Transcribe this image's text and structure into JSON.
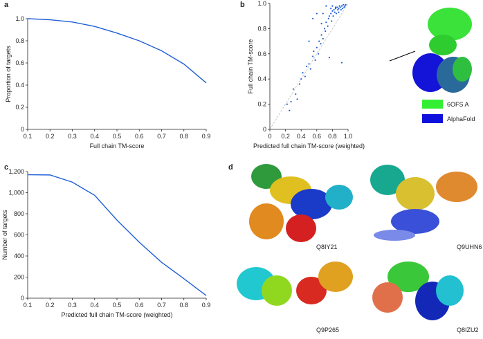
{
  "chart_data": [
    {
      "type": "line",
      "panel": "a",
      "xlabel": "Full chain TM-score",
      "ylabel": "Proportion of targets",
      "color": "#1f5fd6",
      "x": [
        0.1,
        0.2,
        0.3,
        0.4,
        0.5,
        0.6,
        0.7,
        0.8,
        0.9
      ],
      "values": [
        1.0,
        0.99,
        0.97,
        0.93,
        0.87,
        0.8,
        0.71,
        0.59,
        0.42
      ],
      "xlim": [
        0.1,
        0.9
      ],
      "xticks": [
        0.1,
        0.2,
        0.3,
        0.4,
        0.5,
        0.6,
        0.7,
        0.8,
        0.9
      ],
      "ylim": [
        0,
        1
      ],
      "yticks": [
        0,
        0.2,
        0.4,
        0.6,
        0.8,
        {
          "value": 1,
          "label": "1.0"
        }
      ]
    },
    {
      "type": "scatter",
      "panel": "b",
      "xlabel": "Predicted full chain TM-score (weighted)",
      "ylabel": "Full chain TM-score",
      "color": "#1f5fd6",
      "x": [
        0.22,
        0.25,
        0.27,
        0.3,
        0.33,
        0.35,
        0.38,
        0.4,
        0.42,
        0.45,
        0.47,
        0.5,
        0.52,
        0.55,
        0.56,
        0.58,
        0.6,
        0.62,
        0.63,
        0.65,
        0.66,
        0.68,
        0.7,
        0.71,
        0.72,
        0.74,
        0.75,
        0.76,
        0.78,
        0.79,
        0.8,
        0.81,
        0.82,
        0.83,
        0.84,
        0.85,
        0.86,
        0.87,
        0.88,
        0.89,
        0.9,
        0.91,
        0.92,
        0.93,
        0.94,
        0.95,
        0.96,
        0.97,
        0.6,
        0.72,
        0.76,
        0.55,
        0.5,
        0.8,
        0.68,
        0.92,
        0.88,
        0.84,
        0.78,
        0.66
      ],
      "values": [
        0.2,
        0.15,
        0.22,
        0.32,
        0.28,
        0.24,
        0.36,
        0.4,
        0.45,
        0.42,
        0.5,
        0.52,
        0.48,
        0.58,
        0.62,
        0.55,
        0.65,
        0.6,
        0.7,
        0.68,
        0.75,
        0.72,
        0.8,
        0.78,
        0.85,
        0.82,
        0.88,
        0.9,
        0.92,
        0.86,
        0.94,
        0.9,
        0.95,
        0.93,
        0.96,
        0.92,
        0.97,
        0.95,
        0.96,
        0.98,
        0.97,
        0.95,
        0.98,
        0.96,
        0.99,
        0.97,
        0.98,
        0.99,
        0.92,
        0.98,
        0.57,
        0.88,
        0.7,
        0.98,
        0.92,
        0.53,
        0.93,
        0.97,
        0.96,
        0.84
      ],
      "xlim": [
        0,
        1
      ],
      "xticks": [
        0,
        0.2,
        0.4,
        0.6,
        0.8,
        {
          "value": 1,
          "label": "1.0"
        }
      ],
      "ylim": [
        0,
        1
      ],
      "yticks": [
        0,
        0.2,
        0.4,
        0.6,
        0.8,
        {
          "value": 1,
          "label": "1.0"
        }
      ],
      "legend": [
        {
          "name": "6OFS A",
          "color": "#33ee33"
        },
        {
          "name": "AlphaFold",
          "color": "#1010dd"
        }
      ]
    },
    {
      "type": "line",
      "panel": "c",
      "xlabel": "Predicted full chain TM-score (weighted)",
      "ylabel": "Number of targets",
      "color": "#1f5fd6",
      "x": [
        0.1,
        0.2,
        0.3,
        0.4,
        0.5,
        0.6,
        0.7,
        0.8,
        0.9
      ],
      "values": [
        1170,
        1168,
        1100,
        975,
        740,
        530,
        340,
        185,
        25
      ],
      "xlim": [
        0.1,
        0.9
      ],
      "xticks": [
        0.1,
        0.2,
        0.3,
        0.4,
        0.5,
        0.6,
        0.7,
        0.8,
        0.9
      ],
      "ylim": [
        0,
        1200
      ],
      "yticks": [
        0,
        200,
        400,
        600,
        800,
        {
          "value": 1000,
          "label": "1,000"
        },
        {
          "value": 1200,
          "label": "1,200"
        }
      ]
    }
  ],
  "panel_d": {
    "label": "d",
    "structures": [
      "Q8IY21",
      "Q9UHN6",
      "Q9P265",
      "Q8IZU2"
    ]
  }
}
